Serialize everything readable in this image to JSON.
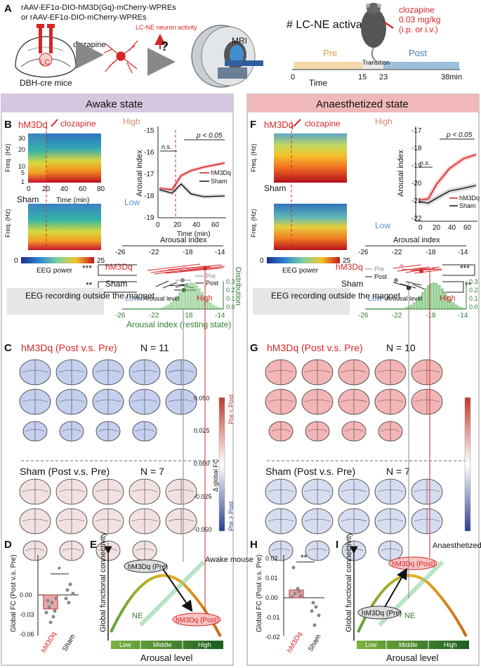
{
  "panelA": {
    "label": "A",
    "virus1": "rAAV-EF1α-DIO-hM3D(Gq)-mCherry-WPREs",
    "virus2": "or  rAAV-EF1α-DIO-mCherry-WPREs",
    "mouse": "DBH-cre mice",
    "lc": "LC",
    "clozapine": "clozapine",
    "activity": "LC-NE neuron activity",
    "question": "?",
    "mri": "MRI",
    "timeline_title": "# LC-NE activation",
    "dose1": "clozapine",
    "dose2": "0.03 mg/kg",
    "dose3": "(i.p. or i.v.)",
    "pre": "Pre",
    "transition": "Transition",
    "post": "Post",
    "ticks": [
      "0",
      "15",
      "23",
      "38min"
    ],
    "time": "Time"
  },
  "awake": {
    "header": "Awake state",
    "labelB": "B",
    "hm3dq": "hM3Dq",
    "clozapine": "clozapine",
    "sham": "Sham",
    "freq_label": "Freq. (Hz)",
    "time_label": "Time (min)",
    "freq_ticks": [
      "30",
      "20",
      "10",
      "5",
      "1"
    ],
    "time_ticks": [
      "0",
      "20",
      "40",
      "60",
      "80"
    ],
    "eeg_power": "EEG power",
    "cbar_min": "0",
    "cbar_max": "25",
    "high": "High",
    "low": "Low",
    "arousal_index": "Arousal index",
    "ns": "n.s.",
    "p": "p < 0.05",
    "legend_hm3dq": "hM3Dq",
    "legend_sham": "Sham",
    "yticks": [
      "-15",
      "-16",
      "-17",
      "-18",
      "-19"
    ],
    "xticks": [
      "0",
      "20",
      "40",
      "60"
    ],
    "dist_title": "Arousal index",
    "dist_ticks": [
      "-26",
      "-22",
      "-18",
      "-14"
    ],
    "stars_hm3dq": "***",
    "stars_sham": "**",
    "pre": "Pre",
    "post": "Post",
    "distribution": "Distribution",
    "dist_yticks": [
      "0.3",
      "0.2",
      "0.1",
      "0.0"
    ],
    "arousal_level": "Arousal level",
    "resting": "Arousal index (resting state)",
    "eeg_box": "EEG recording outside the magnet",
    "labelC": "C",
    "c_title": "hM3Dq (Post v.s. Pre)",
    "c_n": "N = 11",
    "sham_title": "Sham (Post v.s. Pre)",
    "sham_n": "N = 7",
    "fc_ticks": [
      "0.050",
      "0.025",
      "0.000",
      "-0.025",
      "-0.050"
    ],
    "fc_label": "Δ global FC",
    "pre_lt_post": "Pre < Post",
    "pre_gt_post": "Pre > Post",
    "labelD": "D",
    "d_ylabel": "Global FC (Post v.s. Pre)",
    "d_yticks": [
      "0.00",
      "-0.03",
      "-0.06"
    ],
    "d_star": "*",
    "d_x1": "hM3Dq",
    "d_x2": "Sham",
    "labelE": "E",
    "e_ylabel": "Global functional connectivity",
    "e_pre": "hM3Dq (Pre)",
    "e_post": "hM3Dq (Post)",
    "e_mouse": "Awake mouse",
    "ne": "NE",
    "bar_low": "Low",
    "bar_mid": "Middle",
    "bar_high": "High",
    "e_xlabel": "Arousal level"
  },
  "anaes": {
    "header": "Anaesthetized state",
    "labelF": "F",
    "hm3dq": "hM3Dq",
    "clozapine": "clozapine",
    "sham": "Sham",
    "freq_label": "Freq. (Hz)",
    "high": "High",
    "low": "Low",
    "arousal_index": "Arousal index",
    "ns": "n.s.",
    "p": "p < 0.05",
    "legend_hm3dq": "hM3Dq",
    "legend_sham": "Sham",
    "yticks": [
      "-17",
      "-18",
      "-19",
      "-20",
      "-21",
      "-22"
    ],
    "xticks": [
      "0",
      "20",
      "40",
      "60"
    ],
    "eeg_power": "EEG power",
    "cbar_min": "0",
    "cbar_max": "25",
    "dist_title": "Arousal index",
    "dist_ticks": [
      "-26",
      "-22",
      "-18",
      "-14"
    ],
    "stars_hm3dq": "***",
    "stars_sham": "**",
    "pre": "Pre",
    "post": "Post",
    "dist_yticks": [
      "0.3",
      "0.2",
      "0.1",
      "0.0"
    ],
    "arousal_level": "Arousal level",
    "eeg_box": "EEG recording outside the magnet",
    "labelG": "G",
    "g_title": "hM3Dq (Post v.s. Pre)",
    "g_n": "N = 10",
    "sham_title": "Sham (Post v.s. Pre)",
    "sham_n": "N = 7",
    "labelH": "H",
    "h_ylabel": "Global FC (Post v.s. Pre)",
    "h_yticks": [
      "0.02",
      "0.01",
      "0.00",
      "-0.01",
      "-0.02"
    ],
    "h_star": "**",
    "labelI": "I",
    "i_pre": "hM3Dq (Pre)",
    "i_post": "hM3Dq (Post)",
    "i_mouse": "Anaesthetized mouse (isoflurane)",
    "ne": "NE"
  },
  "colors": {
    "awake_header": "#d7c6e0",
    "anaes_header": "#f0b8b8",
    "hm3dq": "#d62728",
    "sham": "#222222",
    "dist": "#6fba6f",
    "pre_bar": "#f3d9a8",
    "post_bar": "#9cc0dc",
    "arousal_dark": "#2e7d32",
    "arousal_light": "#8bc34a"
  }
}
